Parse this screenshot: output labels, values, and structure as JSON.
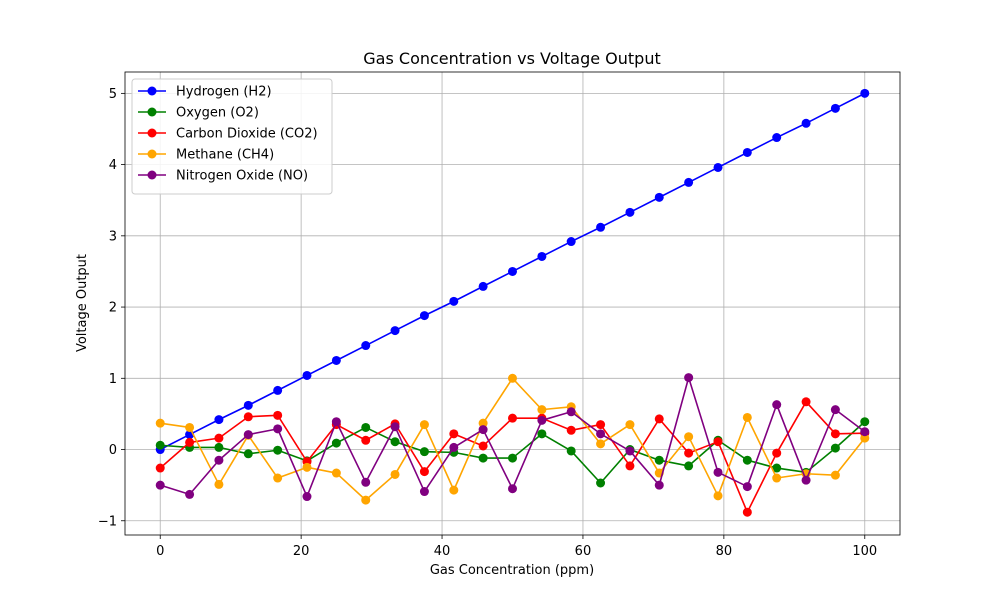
{
  "chart_data": {
    "type": "line",
    "title": "Gas Concentration vs Voltage Output",
    "xlabel": "Gas Concentration (ppm)",
    "ylabel": "Voltage Output",
    "xlim": [
      -5,
      105
    ],
    "ylim": [
      -1.2,
      5.3
    ],
    "xticks": [
      0,
      20,
      40,
      60,
      80,
      100
    ],
    "yticks": [
      -1,
      0,
      1,
      2,
      3,
      4,
      5
    ],
    "ytick_labels": [
      "−1",
      "0",
      "1",
      "2",
      "3",
      "4",
      "5"
    ],
    "grid": true,
    "legend_position": "top-left",
    "x": [
      0,
      4.17,
      8.33,
      12.5,
      16.67,
      20.83,
      25,
      29.17,
      33.33,
      37.5,
      41.67,
      45.83,
      50,
      54.17,
      58.33,
      62.5,
      66.67,
      70.83,
      75,
      79.17,
      83.33,
      87.5,
      91.67,
      95.83,
      100
    ],
    "series": [
      {
        "name": "Hydrogen (H2)",
        "color": "#0000ff",
        "values": [
          0.0,
          0.21,
          0.42,
          0.62,
          0.83,
          1.04,
          1.25,
          1.46,
          1.67,
          1.88,
          2.08,
          2.29,
          2.5,
          2.71,
          2.92,
          3.12,
          3.33,
          3.54,
          3.75,
          3.96,
          4.17,
          4.38,
          4.58,
          4.79,
          5.0
        ]
      },
      {
        "name": "Oxygen (O2)",
        "color": "#008000",
        "values": [
          0.06,
          0.03,
          0.03,
          -0.06,
          -0.01,
          -0.16,
          0.09,
          0.31,
          0.11,
          -0.03,
          -0.04,
          -0.12,
          -0.12,
          0.22,
          -0.02,
          -0.47,
          0.0,
          -0.15,
          -0.23,
          0.13,
          -0.15,
          -0.26,
          -0.32,
          0.02,
          0.39
        ]
      },
      {
        "name": "Carbon Dioxide (CO2)",
        "color": "#ff0000",
        "values": [
          -0.26,
          0.1,
          0.16,
          0.46,
          0.48,
          -0.17,
          0.35,
          0.13,
          0.36,
          -0.31,
          0.22,
          0.05,
          0.44,
          0.44,
          0.27,
          0.35,
          -0.23,
          0.43,
          -0.05,
          0.11,
          -0.88,
          -0.05,
          0.67,
          0.22,
          0.23
        ]
      },
      {
        "name": "Methane (CH4)",
        "color": "#ffa500",
        "values": [
          0.37,
          0.31,
          -0.49,
          0.2,
          -0.4,
          -0.25,
          -0.33,
          -0.71,
          -0.35,
          0.35,
          -0.57,
          0.37,
          1.0,
          0.56,
          0.6,
          0.08,
          0.35,
          -0.33,
          0.18,
          -0.65,
          0.45,
          -0.4,
          -0.34,
          -0.36,
          0.16
        ]
      },
      {
        "name": "Nitrogen Oxide (NO)",
        "color": "#800080",
        "values": [
          -0.5,
          -0.63,
          -0.15,
          0.21,
          0.29,
          -0.66,
          0.39,
          -0.46,
          0.32,
          -0.59,
          0.03,
          0.28,
          -0.55,
          0.41,
          0.53,
          0.22,
          -0.02,
          -0.5,
          1.01,
          -0.32,
          -0.52,
          0.63,
          -0.43,
          0.56,
          0.25
        ]
      }
    ]
  }
}
